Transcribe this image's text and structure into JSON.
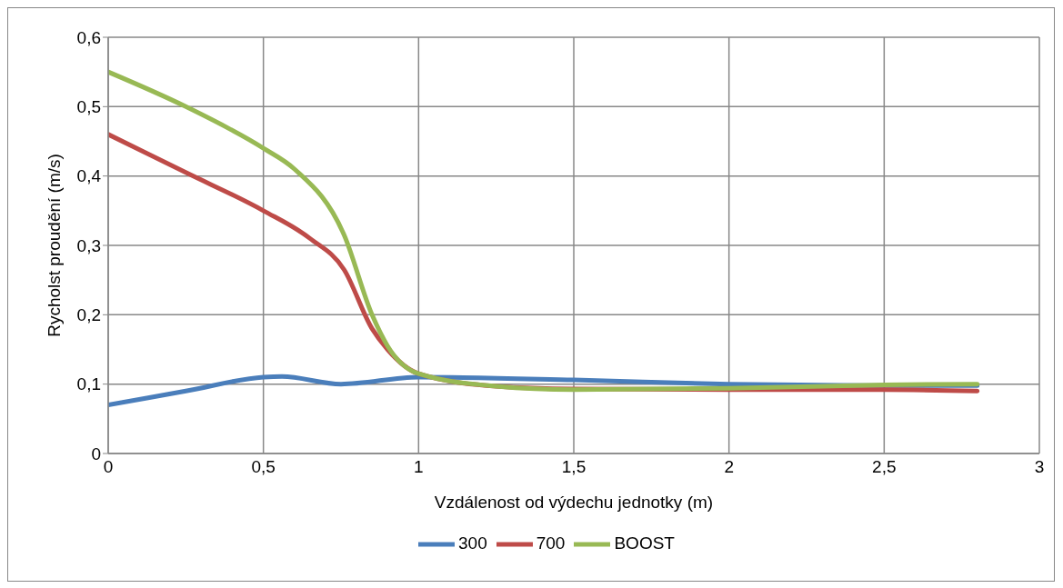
{
  "chart_data": {
    "type": "line",
    "xlabel": "Vzdálenost od výdechu jednotky (m)",
    "ylabel": "Rycholst proudění (m/s)",
    "xlim": [
      0,
      3
    ],
    "xticks": [
      0,
      {
        "value": 0.5,
        "label": "0,5"
      },
      1,
      {
        "value": 1.5,
        "label": "1,5"
      },
      2,
      {
        "value": 2.5,
        "label": "2,5"
      },
      3
    ],
    "ylim": [
      0,
      0.6
    ],
    "yticks": [
      0,
      {
        "value": 0.1,
        "label": "0,1"
      },
      {
        "value": 0.2,
        "label": "0,2"
      },
      {
        "value": 0.3,
        "label": "0,3"
      },
      {
        "value": 0.4,
        "label": "0,4"
      },
      {
        "value": 0.5,
        "label": "0,5"
      },
      {
        "value": 0.6,
        "label": "0,6"
      }
    ],
    "grid": true,
    "legend": "bottom",
    "marker": "none",
    "line_style": "solid",
    "series": [
      {
        "name": "300",
        "color": "#4a7ebb",
        "x": [
          0,
          0.25,
          0.5,
          0.56,
          0.75,
          1,
          1.5,
          2,
          2.5,
          2.8
        ],
        "values": [
          0.07,
          0.09,
          0.11,
          0.111,
          0.1,
          0.11,
          0.106,
          0.1,
          0.098,
          0.098
        ]
      },
      {
        "name": "700",
        "color": "#be4b48",
        "x": [
          0,
          0.25,
          0.5,
          0.65,
          0.76,
          0.85,
          0.9,
          1,
          1.25,
          1.5,
          2,
          2.5,
          2.8
        ],
        "values": [
          0.46,
          0.405,
          0.35,
          0.31,
          0.265,
          0.18,
          0.15,
          0.115,
          0.097,
          0.093,
          0.092,
          0.092,
          0.09
        ]
      },
      {
        "name": "BOOST",
        "color": "#98b954",
        "x": [
          0,
          0.25,
          0.5,
          0.6,
          0.76,
          0.85,
          0.9,
          1,
          1.25,
          1.5,
          2,
          2.5,
          2.8
        ],
        "values": [
          0.55,
          0.5,
          0.44,
          0.41,
          0.315,
          0.2,
          0.155,
          0.115,
          0.097,
          0.092,
          0.094,
          0.099,
          0.1
        ]
      }
    ]
  }
}
